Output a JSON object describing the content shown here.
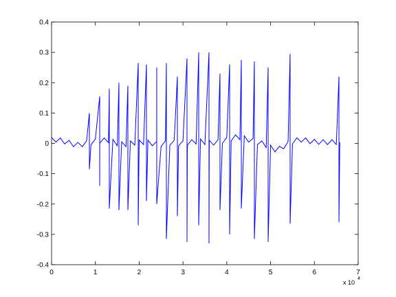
{
  "chart_data": {
    "type": "line",
    "x_multiplier": "x 10",
    "x_multiplier_exponent": "4",
    "xlim": [
      0,
      7
    ],
    "xticks": [
      0,
      1,
      2,
      3,
      4,
      5,
      6,
      7
    ],
    "ylim": [
      -0.4,
      0.4
    ],
    "yticks": [
      -0.4,
      -0.3,
      -0.2,
      -0.1,
      0,
      0.1,
      0.2,
      0.3,
      0.4
    ],
    "grid": false,
    "series": [
      {
        "color": "#0000ff",
        "x": [
          0,
          0.1,
          0.2,
          0.3,
          0.4,
          0.5,
          0.6,
          0.7,
          0.8,
          0.863,
          0.863,
          0.9,
          1.0,
          1.099,
          1.099,
          1.1,
          1.2,
          1.3,
          1.318,
          1.318,
          1.4,
          1.5,
          1.538,
          1.538,
          1.6,
          1.7,
          1.742,
          1.742,
          1.8,
          1.9,
          1.978,
          1.978,
          2.0,
          2.1,
          2.166,
          2.166,
          2.2,
          2.3,
          2.4,
          2.401,
          2.401,
          2.5,
          2.6,
          2.621,
          2.621,
          2.7,
          2.8,
          2.872,
          2.872,
          2.9,
          3.0,
          3.092,
          3.092,
          3.1,
          3.2,
          3.3,
          3.359,
          3.359,
          3.4,
          3.5,
          3.594,
          3.594,
          3.6,
          3.7,
          3.8,
          3.845,
          3.845,
          3.9,
          4.0,
          4.065,
          4.065,
          4.1,
          4.2,
          4.3,
          4.332,
          4.332,
          4.4,
          4.5,
          4.6,
          4.63,
          4.63,
          4.7,
          4.8,
          4.9,
          4.944,
          4.944,
          5.0,
          5.1,
          5.2,
          5.3,
          5.4,
          5.446,
          5.446,
          5.5,
          5.6,
          5.7,
          5.8,
          5.9,
          6.0,
          6.1,
          6.2,
          6.3,
          6.4,
          6.5,
          6.561,
          6.561,
          6.58
        ],
        "values": [
          0.02,
          0.004,
          0.018,
          -0.002,
          0.01,
          -0.011,
          0.003,
          -0.011,
          0.008,
          0.1,
          -0.085,
          -0.005,
          0.014,
          0.155,
          -0.14,
          0.0,
          0.018,
          0.002,
          0.18,
          -0.215,
          0.013,
          -0.008,
          0.2,
          -0.22,
          0.005,
          -0.011,
          0.19,
          -0.22,
          0.008,
          -0.006,
          0.265,
          -0.27,
          0.011,
          -0.004,
          0.26,
          -0.19,
          0.011,
          -0.008,
          0.006,
          0.25,
          -0.2,
          -0.01,
          0.008,
          0.265,
          -0.315,
          -0.006,
          0.01,
          0.22,
          -0.24,
          -0.008,
          0.008,
          0.28,
          -0.325,
          -0.006,
          0.012,
          -0.002,
          0.3,
          -0.27,
          0.014,
          -0.004,
          0.3,
          -0.33,
          0.01,
          -0.006,
          0.012,
          0.23,
          -0.22,
          0.0,
          0.02,
          0.26,
          -0.3,
          0.008,
          0.028,
          0.012,
          0.275,
          -0.215,
          0.025,
          0.004,
          0.016,
          0.27,
          -0.315,
          -0.004,
          0.008,
          -0.014,
          0.25,
          -0.325,
          -0.006,
          -0.028,
          -0.01,
          -0.018,
          0.006,
          0.295,
          -0.265,
          -0.002,
          0.018,
          0.004,
          0.018,
          -0.001,
          0.013,
          -0.003,
          0.012,
          -0.004,
          0.012,
          -0.004,
          0.22,
          -0.26,
          0.004
        ]
      }
    ]
  }
}
